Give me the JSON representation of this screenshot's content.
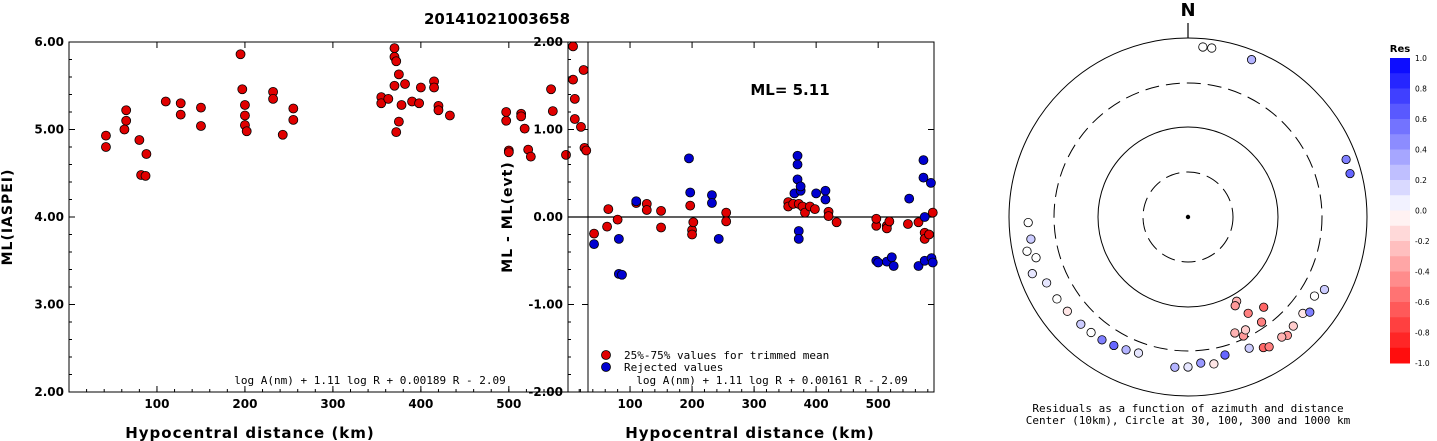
{
  "title": "20141021003658",
  "chart_data": [
    {
      "type": "scatter",
      "ylabel": "ML(IASPEI)",
      "xlabel": "Hypocentral distance (km)",
      "xlim": [
        0,
        590
      ],
      "ylim": [
        2.0,
        6.0
      ],
      "xticks": [
        "100",
        "200",
        "300",
        "400",
        "500"
      ],
      "yticks": [
        "2.00",
        "3.00",
        "4.00",
        "5.00",
        "6.00"
      ],
      "formula": "log A(nm) + 1.11 log R + 0.00189 R - 2.09",
      "marker_color": "#e00000",
      "points": [
        [
          42,
          4.93
        ],
        [
          42,
          4.8
        ],
        [
          65,
          5.22
        ],
        [
          65,
          5.1
        ],
        [
          63,
          5.0
        ],
        [
          80,
          4.88
        ],
        [
          82,
          4.48
        ],
        [
          87,
          4.47
        ],
        [
          88,
          4.72
        ],
        [
          110,
          5.32
        ],
        [
          127,
          5.3
        ],
        [
          127,
          5.17
        ],
        [
          150,
          5.25
        ],
        [
          150,
          5.04
        ],
        [
          195,
          5.86
        ],
        [
          197,
          5.46
        ],
        [
          200,
          5.28
        ],
        [
          200,
          5.16
        ],
        [
          200,
          5.05
        ],
        [
          202,
          4.98
        ],
        [
          232,
          5.43
        ],
        [
          232,
          5.35
        ],
        [
          243,
          4.94
        ],
        [
          255,
          5.24
        ],
        [
          255,
          5.11
        ],
        [
          355,
          5.37
        ],
        [
          355,
          5.3
        ],
        [
          363,
          5.35
        ],
        [
          370,
          5.93
        ],
        [
          370,
          5.83
        ],
        [
          372,
          5.78
        ],
        [
          370,
          5.5
        ],
        [
          375,
          5.63
        ],
        [
          378,
          5.28
        ],
        [
          375,
          5.09
        ],
        [
          372,
          4.97
        ],
        [
          382,
          5.52
        ],
        [
          390,
          5.32
        ],
        [
          398,
          5.3
        ],
        [
          400,
          5.48
        ],
        [
          415,
          5.55
        ],
        [
          415,
          5.48
        ],
        [
          420,
          5.27
        ],
        [
          420,
          5.22
        ],
        [
          433,
          5.16
        ],
        [
          497,
          5.2
        ],
        [
          497,
          5.1
        ],
        [
          500,
          4.76
        ],
        [
          500,
          4.74
        ],
        [
          514,
          5.18
        ],
        [
          514,
          5.15
        ],
        [
          518,
          5.01
        ],
        [
          522,
          4.77
        ],
        [
          525,
          4.69
        ],
        [
          548,
          5.46
        ],
        [
          550,
          5.21
        ],
        [
          565,
          4.71
        ],
        [
          573,
          5.95
        ],
        [
          573,
          5.57
        ],
        [
          575,
          5.35
        ],
        [
          575,
          5.12
        ],
        [
          582,
          5.03
        ],
        [
          585,
          5.68
        ],
        [
          586,
          4.79
        ],
        [
          588,
          4.76
        ]
      ]
    },
    {
      "type": "scatter",
      "ylabel": "ML - ML(evt)",
      "xlabel": "Hypocentral distance (km)",
      "xlim": [
        0,
        590
      ],
      "ylim": [
        -2.0,
        2.0
      ],
      "xticks": [
        "100",
        "200",
        "300",
        "400",
        "500"
      ],
      "yticks": [
        "-2.00",
        "-1.00",
        "0.00",
        "1.00",
        "2.00"
      ],
      "annotation": "ML= 5.11",
      "formula": "log A(nm) + 1.11 log R + 0.00161 R - 2.09",
      "series": [
        {
          "name": "25%-75% values for trimmed mean",
          "color": "#e00000",
          "points": [
            [
              42,
              -0.19
            ],
            [
              63,
              -0.11
            ],
            [
              65,
              0.09
            ],
            [
              80,
              -0.03
            ],
            [
              110,
              0.16
            ],
            [
              127,
              0.15
            ],
            [
              127,
              0.08
            ],
            [
              150,
              -0.12
            ],
            [
              150,
              0.07
            ],
            [
              197,
              0.13
            ],
            [
              200,
              -0.15
            ],
            [
              200,
              -0.2
            ],
            [
              202,
              -0.06
            ],
            [
              255,
              0.05
            ],
            [
              255,
              -0.05
            ],
            [
              355,
              0.17
            ],
            [
              355,
              0.12
            ],
            [
              363,
              0.15
            ],
            [
              372,
              0.15
            ],
            [
              378,
              0.12
            ],
            [
              382,
              0.05
            ],
            [
              390,
              0.12
            ],
            [
              398,
              0.09
            ],
            [
              420,
              0.06
            ],
            [
              420,
              0.01
            ],
            [
              433,
              -0.06
            ],
            [
              497,
              -0.1
            ],
            [
              497,
              -0.02
            ],
            [
              514,
              -0.1
            ],
            [
              514,
              -0.13
            ],
            [
              518,
              -0.05
            ],
            [
              548,
              -0.08
            ],
            [
              565,
              -0.06
            ],
            [
              575,
              -0.18
            ],
            [
              575,
              -0.25
            ],
            [
              582,
              -0.2
            ],
            [
              588,
              0.05
            ]
          ]
        },
        {
          "name": "Rejected values",
          "color": "#0000d0",
          "points": [
            [
              42,
              -0.31
            ],
            [
              82,
              -0.25
            ],
            [
              82,
              -0.65
            ],
            [
              87,
              -0.66
            ],
            [
              110,
              0.18
            ],
            [
              195,
              0.67
            ],
            [
              197,
              0.28
            ],
            [
              232,
              0.25
            ],
            [
              232,
              0.16
            ],
            [
              243,
              -0.25
            ],
            [
              370,
              0.7
            ],
            [
              370,
              0.6
            ],
            [
              370,
              0.43
            ],
            [
              365,
              0.27
            ],
            [
              375,
              0.3
            ],
            [
              375,
              0.35
            ],
            [
              372,
              -0.16
            ],
            [
              372,
              -0.25
            ],
            [
              400,
              0.27
            ],
            [
              415,
              0.3
            ],
            [
              415,
              0.2
            ],
            [
              497,
              -0.5
            ],
            [
              500,
              -0.52
            ],
            [
              514,
              -0.51
            ],
            [
              522,
              -0.46
            ],
            [
              525,
              -0.56
            ],
            [
              550,
              0.21
            ],
            [
              565,
              -0.56
            ],
            [
              573,
              0.65
            ],
            [
              573,
              0.45
            ],
            [
              575,
              -0.5
            ],
            [
              575,
              0.0
            ],
            [
              585,
              0.39
            ],
            [
              586,
              -0.47
            ],
            [
              588,
              -0.52
            ]
          ]
        }
      ]
    },
    {
      "type": "scatter",
      "projection": "polar",
      "north_label": "N",
      "caption": [
        "Residuals as a function of azimuth and distance",
        "Center (10km), Circle at 30, 100, 300 and 1000 km"
      ],
      "points_az_dist": [
        [
          5,
          800
        ],
        [
          8,
          800
        ],
        [
          22,
          780
        ],
        [
          70,
          750
        ],
        [
          75,
          740
        ],
        [
          150,
          120
        ],
        [
          152,
          130
        ],
        [
          148,
          180
        ],
        [
          140,
          200
        ],
        [
          158,
          240
        ],
        [
          145,
          260
        ],
        [
          155,
          280
        ],
        [
          153,
          250
        ],
        [
          155,
          400
        ],
        [
          165,
          380
        ],
        [
          175,
          420
        ],
        [
          170,
          450
        ],
        [
          180,
          460
        ],
        [
          185,
          470
        ],
        [
          150,
          470
        ],
        [
          148,
          500
        ],
        [
          140,
          520
        ],
        [
          142,
          490
        ],
        [
          136,
          480
        ],
        [
          130,
          460
        ],
        [
          122,
          450
        ],
        [
          128,
          520
        ],
        [
          118,
          520
        ],
        [
          200,
          400
        ],
        [
          205,
          420
        ],
        [
          210,
          440
        ],
        [
          215,
          460
        ],
        [
          220,
          470
        ],
        [
          225,
          480
        ],
        [
          232,
          500
        ],
        [
          238,
          520
        ],
        [
          245,
          540
        ],
        [
          255,
          560
        ],
        [
          262,
          580
        ],
        [
          268,
          600
        ],
        [
          258,
          680
        ],
        [
          250,
          700
        ]
      ],
      "residuals": [
        0.0,
        0.0,
        0.3,
        0.5,
        0.6,
        -0.3,
        -0.4,
        -0.5,
        -0.6,
        -0.3,
        -0.5,
        -0.4,
        -0.2,
        0.2,
        0.6,
        0.4,
        -0.1,
        0.1,
        0.3,
        -0.6,
        -0.5,
        -0.4,
        -0.3,
        -0.2,
        -0.1,
        0.0,
        0.5,
        0.2,
        0.1,
        0.3,
        0.6,
        0.5,
        0.0,
        0.2,
        -0.1,
        0.0,
        0.1,
        0.0,
        0.2,
        0.0,
        0.0,
        0.1
      ]
    }
  ],
  "colorbar": {
    "title": "Res",
    "ticks": [
      "1.0",
      "0.8",
      "0.6",
      "0.4",
      "0.2",
      "0.0",
      "-0.2",
      "-0.4",
      "-0.6",
      "-0.8",
      "-1.0"
    ]
  }
}
